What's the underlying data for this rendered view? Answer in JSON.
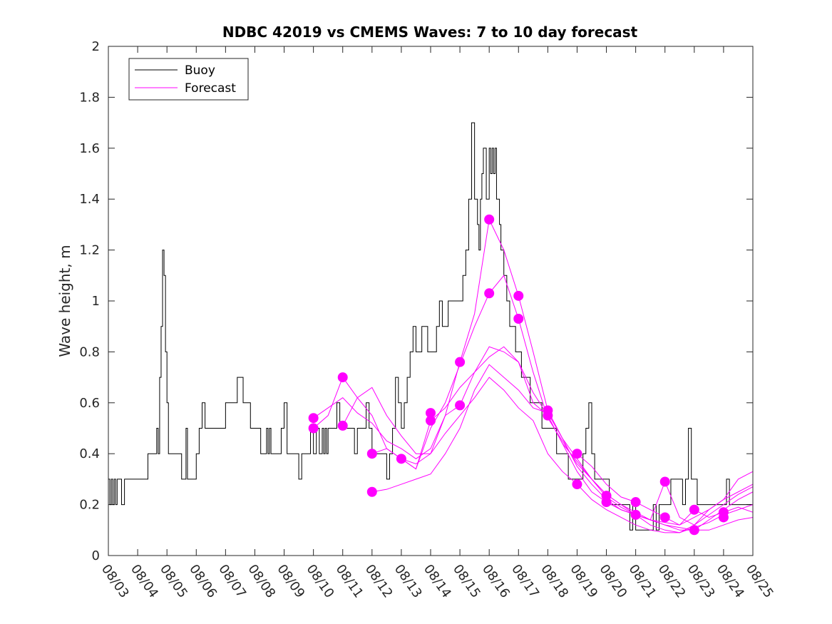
{
  "chart_data": {
    "type": "line",
    "title": "NDBC 42019 vs CMEMS Waves: 7 to 10 day forecast",
    "xlabel": "",
    "ylabel": "Wave height, m",
    "xlim": [
      0,
      22
    ],
    "ylim": [
      0,
      2
    ],
    "x_tick_values": [
      0,
      1,
      2,
      3,
      4,
      5,
      6,
      7,
      8,
      9,
      10,
      11,
      12,
      13,
      14,
      15,
      16,
      17,
      18,
      19,
      20,
      21,
      22
    ],
    "x_tick_labels": [
      "08/03",
      "08/04",
      "08/05",
      "08/06",
      "08/07",
      "08/08",
      "08/09",
      "08/10",
      "08/11",
      "08/12",
      "08/13",
      "08/14",
      "08/15",
      "08/16",
      "08/17",
      "08/18",
      "08/19",
      "08/20",
      "08/21",
      "08/22",
      "08/23",
      "08/24",
      "08/25"
    ],
    "y_tick_values": [
      0,
      0.2,
      0.4,
      0.6,
      0.8,
      1,
      1.2,
      1.4,
      1.6,
      1.8,
      2
    ],
    "y_tick_labels": [
      "0",
      "0.2",
      "0.4",
      "0.6",
      "0.8",
      "1",
      "1.2",
      "1.4",
      "1.6",
      "1.8",
      "2"
    ],
    "legend": {
      "placement": "top-left",
      "entries": [
        {
          "name": "Buoy",
          "color": "#000000"
        },
        {
          "name": "Forecast",
          "color": "#ff00ff"
        }
      ]
    },
    "series": [
      {
        "name": "Buoy",
        "color": "#000000",
        "x": [
          0,
          0.05,
          0.1,
          0.15,
          0.2,
          0.25,
          0.3,
          0.35,
          0.45,
          0.55,
          0.65,
          0.75,
          0.85,
          0.95,
          1.05,
          1.15,
          1.25,
          1.35,
          1.4,
          1.5,
          1.6,
          1.65,
          1.7,
          1.72,
          1.75,
          1.8,
          1.85,
          1.9,
          1.95,
          2.0,
          2.05,
          2.1,
          2.15,
          2.3,
          2.4,
          2.5,
          2.6,
          2.65,
          2.7,
          2.8,
          2.9,
          3.0,
          3.1,
          3.2,
          3.3,
          3.4,
          3.5,
          3.6,
          3.7,
          3.8,
          4.0,
          4.2,
          4.4,
          4.6,
          4.7,
          4.75,
          4.8,
          4.85,
          4.9,
          5.0,
          5.2,
          5.4,
          5.45,
          5.5,
          5.55,
          5.6,
          5.7,
          5.8,
          5.9,
          6.0,
          6.1,
          6.2,
          6.3,
          6.4,
          6.5,
          6.6,
          6.8,
          6.9,
          7.0,
          7.1,
          7.2,
          7.3,
          7.35,
          7.4,
          7.45,
          7.5,
          7.6,
          7.7,
          7.8,
          7.9,
          8.0,
          8.1,
          8.2,
          8.3,
          8.4,
          8.5,
          8.6,
          8.7,
          8.8,
          8.9,
          9.0,
          9.1,
          9.2,
          9.3,
          9.4,
          9.5,
          9.6,
          9.7,
          9.8,
          9.9,
          10.0,
          10.1,
          10.2,
          10.3,
          10.4,
          10.5,
          10.6,
          10.7,
          10.8,
          10.9,
          11.0,
          11.1,
          11.2,
          11.3,
          11.4,
          11.5,
          11.6,
          11.7,
          11.8,
          11.9,
          12.0,
          12.1,
          12.2,
          12.3,
          12.4,
          12.5,
          12.6,
          12.65,
          12.7,
          12.75,
          12.8,
          12.9,
          13.0,
          13.05,
          13.1,
          13.15,
          13.2,
          13.25,
          13.3,
          13.35,
          13.4,
          13.5,
          13.6,
          13.7,
          13.8,
          13.9,
          14.0,
          14.1,
          14.2,
          14.3,
          14.4,
          14.5,
          14.6,
          14.7,
          14.8,
          14.9,
          15.0,
          15.1,
          15.2,
          15.3,
          15.4,
          15.5,
          15.6,
          15.7,
          15.8,
          15.9,
          16.0,
          16.1,
          16.2,
          16.3,
          16.4,
          16.5,
          16.6,
          16.7,
          16.8,
          16.9,
          17.0,
          17.1,
          17.2,
          17.3,
          17.4,
          17.5,
          17.6,
          17.7,
          17.8,
          17.9,
          18.0,
          18.1,
          18.2,
          18.3,
          18.4,
          18.5,
          18.6,
          18.7,
          18.8,
          18.9,
          19.0,
          19.1,
          19.2,
          19.3,
          19.4,
          19.5,
          19.6,
          19.7,
          19.8,
          19.9,
          20.0,
          20.1,
          20.2,
          20.3,
          20.4,
          20.5,
          20.6,
          20.7,
          20.8,
          20.9,
          21.0,
          21.1,
          21.2,
          21.3,
          21.4,
          21.5,
          21.6,
          21.7,
          21.8,
          21.9,
          22.0
        ],
        "y": [
          0.3,
          0.2,
          0.3,
          0.2,
          0.3,
          0.2,
          0.3,
          0.3,
          0.2,
          0.3,
          0.3,
          0.3,
          0.3,
          0.3,
          0.3,
          0.3,
          0.3,
          0.4,
          0.4,
          0.4,
          0.4,
          0.5,
          0.4,
          0.4,
          0.7,
          0.9,
          1.2,
          1.1,
          0.8,
          0.6,
          0.4,
          0.4,
          0.4,
          0.4,
          0.4,
          0.3,
          0.3,
          0.5,
          0.3,
          0.3,
          0.3,
          0.4,
          0.5,
          0.6,
          0.5,
          0.5,
          0.5,
          0.5,
          0.5,
          0.5,
          0.6,
          0.6,
          0.7,
          0.6,
          0.6,
          0.6,
          0.6,
          0.5,
          0.5,
          0.5,
          0.4,
          0.5,
          0.4,
          0.5,
          0.4,
          0.4,
          0.4,
          0.4,
          0.5,
          0.6,
          0.4,
          0.4,
          0.4,
          0.4,
          0.3,
          0.4,
          0.4,
          0.5,
          0.4,
          0.5,
          0.4,
          0.5,
          0.4,
          0.5,
          0.4,
          0.5,
          0.5,
          0.5,
          0.6,
          0.5,
          0.5,
          0.5,
          0.5,
          0.5,
          0.4,
          0.5,
          0.5,
          0.5,
          0.6,
          0.5,
          0.4,
          0.4,
          0.4,
          0.4,
          0.4,
          0.3,
          0.4,
          0.5,
          0.7,
          0.6,
          0.5,
          0.6,
          0.7,
          0.8,
          0.9,
          0.8,
          0.8,
          0.9,
          0.9,
          0.8,
          0.8,
          0.8,
          0.9,
          1.0,
          0.9,
          0.9,
          1.0,
          1.0,
          1.0,
          1.0,
          1.0,
          1.1,
          1.2,
          1.4,
          1.7,
          1.4,
          1.3,
          1.2,
          1.4,
          1.5,
          1.6,
          1.4,
          1.6,
          1.5,
          1.6,
          1.5,
          1.6,
          1.4,
          1.4,
          1.3,
          1.2,
          1.1,
          1.0,
          0.9,
          0.9,
          0.8,
          0.8,
          0.7,
          0.7,
          0.7,
          0.6,
          0.6,
          0.6,
          0.6,
          0.5,
          0.5,
          0.5,
          0.5,
          0.5,
          0.4,
          0.4,
          0.4,
          0.4,
          0.3,
          0.3,
          0.3,
          0.3,
          0.3,
          0.4,
          0.5,
          0.6,
          0.4,
          0.3,
          0.3,
          0.3,
          0.3,
          0.3,
          0.2,
          0.2,
          0.2,
          0.2,
          0.2,
          0.2,
          0.2,
          0.1,
          0.2,
          0.1,
          0.1,
          0.1,
          0.1,
          0.1,
          0.1,
          0.2,
          0.1,
          0.2,
          0.2,
          0.2,
          0.2,
          0.3,
          0.3,
          0.3,
          0.3,
          0.2,
          0.3,
          0.5,
          0.3,
          0.3,
          0.2,
          0.2,
          0.2,
          0.2,
          0.2,
          0.2,
          0.2,
          0.2,
          0.2,
          0.2,
          0.3,
          0.2,
          0.2,
          0.2,
          0.2,
          0.2,
          0.2,
          0.2,
          0.2,
          0.2
        ]
      },
      {
        "name": "Forecast",
        "color": "#ff00ff",
        "x": [
          7.0,
          7.5,
          8.0,
          8.5,
          9.0,
          9.5,
          10.0,
          10.5,
          11.0,
          11.5,
          12.0,
          12.5,
          13.0,
          13.5,
          14.0,
          14.5,
          15.0,
          15.5,
          16.0,
          16.5,
          17.0,
          17.5,
          18.0,
          18.5,
          19.0,
          19.5,
          20.0,
          20.5,
          21.0,
          21.5,
          22.0
        ],
        "y": [
          0.54,
          0.58,
          0.62,
          0.56,
          0.52,
          0.45,
          0.42,
          0.38,
          0.42,
          0.55,
          0.76,
          0.95,
          1.32,
          1.2,
          1.02,
          0.8,
          0.57,
          0.46,
          0.35,
          0.28,
          0.22,
          0.18,
          0.16,
          0.14,
          0.13,
          0.12,
          0.15,
          0.18,
          0.22,
          0.25,
          0.28
        ]
      },
      {
        "name": "Forecast",
        "color": "#ff00ff",
        "x": [
          7.0,
          7.5,
          8.0,
          8.5,
          9.0,
          9.5,
          10.0,
          10.5,
          11.0,
          11.5,
          12.0,
          12.5,
          13.0,
          13.5,
          14.0,
          14.5,
          15.0,
          15.5,
          16.0,
          16.5,
          17.0,
          17.5,
          18.0,
          18.5,
          19.0,
          19.5,
          20.0,
          20.5,
          21.0,
          21.5,
          22.0
        ],
        "y": [
          0.5,
          0.55,
          0.7,
          0.62,
          0.55,
          0.42,
          0.38,
          0.34,
          0.5,
          0.6,
          0.75,
          0.9,
          1.03,
          1.1,
          0.93,
          0.72,
          0.54,
          0.45,
          0.36,
          0.3,
          0.24,
          0.2,
          0.17,
          0.14,
          0.12,
          0.1,
          0.1,
          0.1,
          0.12,
          0.14,
          0.15
        ]
      },
      {
        "name": "Forecast",
        "color": "#ff00ff",
        "x": [
          8.0,
          8.5,
          9.0,
          9.5,
          10.0,
          10.5,
          11.0,
          11.5,
          12.0,
          12.5,
          13.0,
          13.5,
          14.0,
          14.5,
          15.0,
          15.5,
          16.0,
          16.5,
          17.0,
          17.5,
          18.0,
          18.5,
          19.0,
          19.5,
          20.0,
          20.5,
          21.0,
          21.5,
          22.0
        ],
        "y": [
          0.51,
          0.62,
          0.66,
          0.55,
          0.47,
          0.4,
          0.4,
          0.55,
          0.59,
          0.72,
          0.82,
          0.8,
          0.76,
          0.64,
          0.55,
          0.44,
          0.37,
          0.3,
          0.24,
          0.2,
          0.16,
          0.12,
          0.1,
          0.09,
          0.11,
          0.13,
          0.16,
          0.18,
          0.2
        ]
      },
      {
        "name": "Forecast",
        "color": "#ff00ff",
        "x": [
          9.0,
          9.5,
          10.0,
          10.5,
          11.0,
          11.5,
          12.0,
          12.5,
          13.0,
          13.5,
          14.0,
          14.5,
          15.0,
          15.5,
          16.0,
          16.5,
          17.0,
          17.5,
          18.0,
          18.5,
          19.0,
          19.5,
          20.0,
          20.5,
          21.0,
          21.5,
          22.0
        ],
        "y": [
          0.25,
          0.26,
          0.28,
          0.3,
          0.32,
          0.4,
          0.5,
          0.65,
          0.75,
          0.7,
          0.65,
          0.58,
          0.56,
          0.46,
          0.38,
          0.3,
          0.23,
          0.19,
          0.16,
          0.14,
          0.12,
          0.11,
          0.1,
          0.14,
          0.18,
          0.22,
          0.25
        ]
      },
      {
        "name": "Forecast",
        "color": "#ff00ff",
        "x": [
          9.0,
          9.5,
          10.0,
          10.5,
          11.0,
          11.5,
          12.0,
          12.5,
          13.0,
          13.5,
          14.0,
          14.5,
          15.0,
          15.5,
          16.0,
          16.5,
          17.0,
          17.5,
          18.0,
          18.5,
          19.0,
          19.5,
          20.0,
          20.5,
          21.0,
          21.5,
          22.0
        ],
        "y": [
          0.4,
          0.42,
          0.38,
          0.36,
          0.4,
          0.48,
          0.55,
          0.62,
          0.7,
          0.65,
          0.58,
          0.53,
          0.4,
          0.33,
          0.28,
          0.22,
          0.18,
          0.15,
          0.12,
          0.1,
          0.09,
          0.09,
          0.12,
          0.16,
          0.2,
          0.24,
          0.27
        ]
      },
      {
        "name": "Forecast",
        "color": "#ff00ff",
        "x": [
          10.0,
          10.5,
          11.0,
          11.5,
          12.0,
          12.5,
          13.0,
          13.5,
          14.0,
          14.5,
          15.0,
          15.5,
          16.0,
          16.5,
          17.0,
          17.5,
          18.0,
          18.5,
          19.0,
          19.5,
          20.0,
          20.5,
          21.0,
          21.5,
          22.0
        ],
        "y": [
          0.38,
          0.34,
          0.53,
          0.58,
          0.66,
          0.72,
          0.78,
          0.82,
          0.76,
          0.6,
          0.55,
          0.44,
          0.33,
          0.25,
          0.21,
          0.18,
          0.16,
          0.14,
          0.29,
          0.15,
          0.12,
          0.18,
          0.22,
          0.3,
          0.33
        ]
      },
      {
        "name": "Forecast",
        "color": "#ff00ff",
        "x": [
          16.0,
          16.5,
          17.0,
          17.5,
          18.0,
          18.5,
          19.0,
          19.5,
          20.0,
          20.5,
          21.0,
          21.5,
          22.0
        ],
        "y": [
          0.4,
          0.35,
          0.28,
          0.23,
          0.21,
          0.18,
          0.15,
          0.12,
          0.18,
          0.15,
          0.17,
          0.19,
          0.17
        ]
      }
    ],
    "markers": {
      "series": "Forecast",
      "x": [
        7.0,
        7.0,
        8.0,
        8.0,
        9.0,
        9.0,
        10.0,
        11.0,
        11.0,
        12.0,
        12.0,
        13.0,
        13.0,
        14.0,
        14.0,
        15.0,
        15.0,
        16.0,
        16.0,
        17.0,
        17.0,
        18.0,
        18.0,
        19.0,
        19.0,
        20.0,
        20.0,
        21.0,
        21.0
      ],
      "y": [
        0.54,
        0.5,
        0.7,
        0.51,
        0.4,
        0.25,
        0.38,
        0.56,
        0.53,
        0.76,
        0.59,
        1.32,
        1.03,
        1.02,
        0.93,
        0.57,
        0.55,
        0.4,
        0.28,
        0.235,
        0.21,
        0.21,
        0.16,
        0.29,
        0.15,
        0.18,
        0.1,
        0.17,
        0.15
      ]
    }
  }
}
